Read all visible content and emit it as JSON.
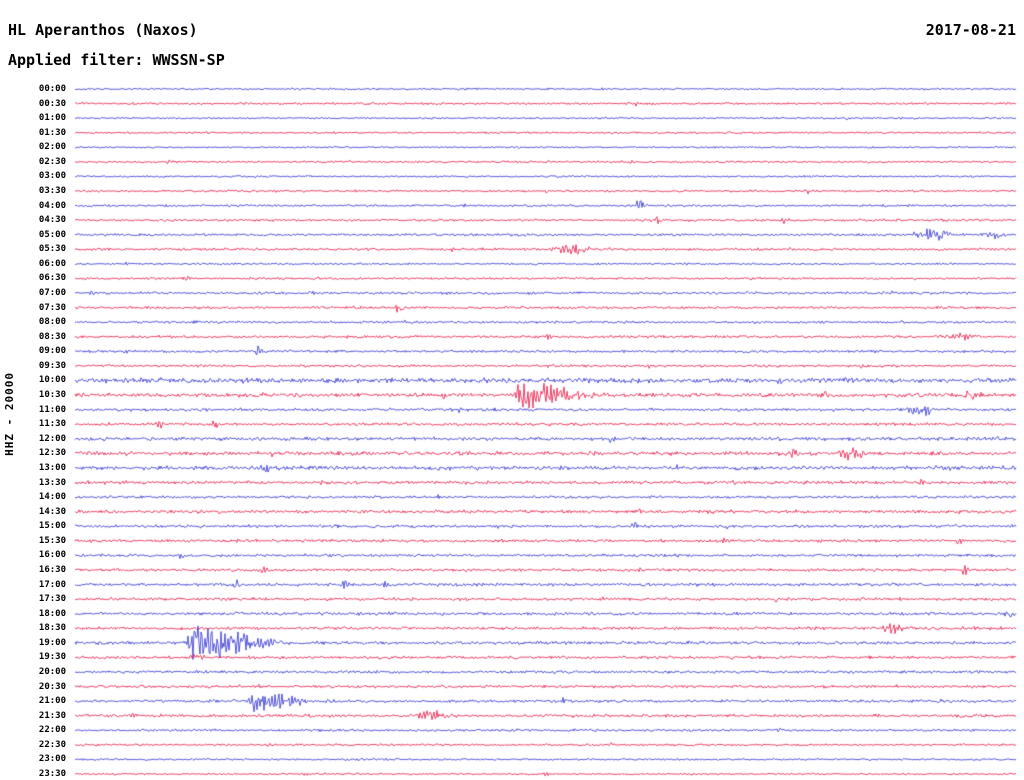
{
  "header": {
    "station_title": "HL Aperanthos (Naxos)",
    "date": "2017-08-21",
    "filter_label": "Applied filter: WWSSN-SP"
  },
  "axis": {
    "left_label": "HHZ - 20000"
  },
  "chart_data": {
    "type": "line",
    "subtype": "helicorder-seismogram",
    "title": "HL Aperanthos (Naxos)",
    "date": "2017-08-21",
    "filter": "WWSSN-SP",
    "channel_scale": "HHZ - 20000",
    "row_duration_minutes": 30,
    "legend_position": "none",
    "grid": false,
    "colors": {
      "blue": "#2424d0",
      "red": "#e60a3c"
    },
    "rows": [
      {
        "label": "00:00",
        "color": "blue",
        "noise": 0.6,
        "events": [
          {
            "p": 0.27,
            "a": 1.5,
            "w": 2
          },
          {
            "p": 0.56,
            "a": 1.2,
            "w": 2
          }
        ]
      },
      {
        "label": "00:30",
        "color": "red",
        "noise": 0.7,
        "events": [
          {
            "p": 0.595,
            "a": 2,
            "w": 2
          },
          {
            "p": 0.3,
            "a": 1.5,
            "w": 2
          }
        ]
      },
      {
        "label": "01:00",
        "color": "blue",
        "noise": 0.55,
        "events": [
          {
            "p": 0.82,
            "a": 1.5,
            "w": 2
          }
        ]
      },
      {
        "label": "01:30",
        "color": "red",
        "noise": 0.6,
        "events": [
          {
            "p": 0.15,
            "a": 1.3,
            "w": 2
          },
          {
            "p": 0.83,
            "a": 1.5,
            "w": 2
          }
        ]
      },
      {
        "label": "02:00",
        "color": "blue",
        "noise": 0.55,
        "events": [
          {
            "p": 0.47,
            "a": 1.5,
            "w": 2
          }
        ]
      },
      {
        "label": "02:30",
        "color": "red",
        "noise": 0.65,
        "events": [
          {
            "p": 0.59,
            "a": 2,
            "w": 2
          },
          {
            "p": 0.1,
            "a": 1.3,
            "w": 2
          },
          {
            "p": 0.33,
            "a": 1.3,
            "w": 2
          }
        ]
      },
      {
        "label": "03:00",
        "color": "blue",
        "noise": 0.6,
        "events": [
          {
            "p": 0.78,
            "a": 2,
            "w": 3
          }
        ]
      },
      {
        "label": "03:30",
        "color": "red",
        "noise": 0.65,
        "events": [
          {
            "p": 0.215,
            "a": 1.8,
            "w": 2
          },
          {
            "p": 0.78,
            "a": 2,
            "w": 2
          },
          {
            "p": 0.5,
            "a": 1.4,
            "w": 2
          }
        ]
      },
      {
        "label": "04:00",
        "color": "blue",
        "noise": 0.7,
        "events": [
          {
            "p": 0.6,
            "a": 6,
            "w": 3
          },
          {
            "p": 0.3,
            "a": 1.6,
            "w": 2
          },
          {
            "p": 0.415,
            "a": 1.6,
            "w": 2
          },
          {
            "p": 0.7,
            "a": 1.5,
            "w": 2
          }
        ]
      },
      {
        "label": "04:30",
        "color": "red",
        "noise": 0.7,
        "events": [
          {
            "p": 0.617,
            "a": 3.5,
            "w": 3
          },
          {
            "p": 0.755,
            "a": 3,
            "w": 3
          },
          {
            "p": 0.3,
            "a": 1.5,
            "w": 2
          }
        ]
      },
      {
        "label": "05:00",
        "color": "blue",
        "noise": 0.75,
        "events": [
          {
            "p": 0.912,
            "a": 5,
            "w": 14
          },
          {
            "p": 0.978,
            "a": 4.5,
            "w": 6
          },
          {
            "p": 0.48,
            "a": 1.6,
            "w": 2
          }
        ]
      },
      {
        "label": "05:30",
        "color": "red",
        "noise": 0.8,
        "events": [
          {
            "p": 0.529,
            "a": 4,
            "w": 12
          },
          {
            "p": 0.4,
            "a": 2,
            "w": 3
          },
          {
            "p": 0.76,
            "a": 1.6,
            "w": 2
          }
        ]
      },
      {
        "label": "06:00",
        "color": "blue",
        "noise": 0.6,
        "events": [
          {
            "p": 0.055,
            "a": 1.6,
            "w": 2
          },
          {
            "p": 0.65,
            "a": 1.4,
            "w": 2
          }
        ]
      },
      {
        "label": "06:30",
        "color": "red",
        "noise": 0.7,
        "events": [
          {
            "p": 0.12,
            "a": 2.5,
            "w": 3
          },
          {
            "p": 0.52,
            "a": 1.5,
            "w": 2
          }
        ]
      },
      {
        "label": "07:00",
        "color": "blue",
        "noise": 0.8,
        "events": [
          {
            "p": 0.016,
            "a": 2,
            "w": 2
          },
          {
            "p": 0.25,
            "a": 2.2,
            "w": 3
          },
          {
            "p": 0.87,
            "a": 1.6,
            "w": 2
          }
        ]
      },
      {
        "label": "07:30",
        "color": "red",
        "noise": 0.8,
        "events": [
          {
            "p": 0.345,
            "a": 7,
            "w": 3
          },
          {
            "p": 0.235,
            "a": 2,
            "w": 2
          },
          {
            "p": 0.58,
            "a": 1.6,
            "w": 2
          }
        ]
      },
      {
        "label": "08:00",
        "color": "blue",
        "noise": 0.75,
        "events": [
          {
            "p": 0.35,
            "a": 2,
            "w": 2
          },
          {
            "p": 0.6,
            "a": 1.5,
            "w": 2
          },
          {
            "p": 0.07,
            "a": 1.5,
            "w": 2
          }
        ]
      },
      {
        "label": "08:30",
        "color": "red",
        "noise": 0.85,
        "events": [
          {
            "p": 0.5,
            "a": 2.5,
            "w": 6
          },
          {
            "p": 0.94,
            "a": 3.5,
            "w": 10
          },
          {
            "p": 0.2,
            "a": 1.8,
            "w": 2
          },
          {
            "p": 0.64,
            "a": 1.8,
            "w": 2
          }
        ]
      },
      {
        "label": "09:00",
        "color": "blue",
        "noise": 0.8,
        "events": [
          {
            "p": 0.197,
            "a": 6.5,
            "w": 3
          },
          {
            "p": 0.056,
            "a": 2.2,
            "w": 2
          },
          {
            "p": 0.85,
            "a": 2.2,
            "w": 3
          }
        ]
      },
      {
        "label": "09:30",
        "color": "red",
        "noise": 0.8,
        "events": [
          {
            "p": 0.24,
            "a": 2,
            "w": 2
          },
          {
            "p": 0.61,
            "a": 1.6,
            "w": 2
          },
          {
            "p": 0.835,
            "a": 1.8,
            "w": 2
          }
        ]
      },
      {
        "label": "10:00",
        "color": "blue",
        "noise": 1.5,
        "events": [
          {
            "p": 0.09,
            "a": 2.5,
            "w": 3
          },
          {
            "p": 0.4,
            "a": 2.5,
            "w": 3
          },
          {
            "p": 0.75,
            "a": 2,
            "w": 2
          }
        ]
      },
      {
        "label": "10:30",
        "color": "red",
        "noise": 1.2,
        "events": [
          {
            "p": 0.475,
            "a": 13,
            "w": 10,
            "t": "quake"
          },
          {
            "p": 0.393,
            "a": 5,
            "w": 4
          },
          {
            "p": 0.197,
            "a": 3,
            "w": 3
          },
          {
            "p": 0.797,
            "a": 3,
            "w": 4
          },
          {
            "p": 0.955,
            "a": 4,
            "w": 8
          },
          {
            "p": 0.6,
            "a": 2.5,
            "w": 3
          }
        ]
      },
      {
        "label": "11:00",
        "color": "blue",
        "noise": 0.9,
        "events": [
          {
            "p": 0.9,
            "a": 5,
            "w": 10
          },
          {
            "p": 0.41,
            "a": 2.2,
            "w": 3
          },
          {
            "p": 0.25,
            "a": 1.8,
            "w": 2
          }
        ]
      },
      {
        "label": "11:30",
        "color": "red",
        "noise": 0.9,
        "events": [
          {
            "p": 0.09,
            "a": 4,
            "w": 3
          },
          {
            "p": 0.149,
            "a": 4,
            "w": 3
          },
          {
            "p": 0.47,
            "a": 1.8,
            "w": 2
          }
        ]
      },
      {
        "label": "12:00",
        "color": "blue",
        "noise": 1.1,
        "events": [
          {
            "p": 0.57,
            "a": 2,
            "w": 3
          },
          {
            "p": 0.3,
            "a": 1.8,
            "w": 2
          }
        ]
      },
      {
        "label": "12:30",
        "color": "red",
        "noise": 1.2,
        "events": [
          {
            "p": 0.765,
            "a": 5,
            "w": 5
          },
          {
            "p": 0.824,
            "a": 5.5,
            "w": 9
          },
          {
            "p": 0.21,
            "a": 2,
            "w": 2
          }
        ]
      },
      {
        "label": "13:00",
        "color": "blue",
        "noise": 1.2,
        "events": [
          {
            "p": 0.202,
            "a": 4.5,
            "w": 3
          },
          {
            "p": 0.64,
            "a": 2,
            "w": 2
          },
          {
            "p": 0.93,
            "a": 2,
            "w": 2
          }
        ]
      },
      {
        "label": "13:30",
        "color": "red",
        "noise": 1.0,
        "events": [
          {
            "p": 0.26,
            "a": 2,
            "w": 2
          },
          {
            "p": 0.7,
            "a": 1.8,
            "w": 2
          },
          {
            "p": 0.9,
            "a": 2,
            "w": 3
          }
        ]
      },
      {
        "label": "14:00",
        "color": "blue",
        "noise": 0.8,
        "events": [
          {
            "p": 0.385,
            "a": 2,
            "w": 2
          },
          {
            "p": 0.76,
            "a": 1.6,
            "w": 2
          }
        ]
      },
      {
        "label": "14:30",
        "color": "red",
        "noise": 1.0,
        "events": [
          {
            "p": 0.6,
            "a": 2.2,
            "w": 2
          },
          {
            "p": 0.775,
            "a": 2.2,
            "w": 2
          },
          {
            "p": 0.94,
            "a": 2,
            "w": 2
          },
          {
            "p": 0.33,
            "a": 1.8,
            "w": 2
          }
        ]
      },
      {
        "label": "15:00",
        "color": "blue",
        "noise": 0.9,
        "events": [
          {
            "p": 0.595,
            "a": 3.5,
            "w": 3
          },
          {
            "p": 0.69,
            "a": 3.5,
            "w": 3
          },
          {
            "p": 0.45,
            "a": 1.8,
            "w": 2
          }
        ]
      },
      {
        "label": "15:30",
        "color": "red",
        "noise": 0.9,
        "events": [
          {
            "p": 0.69,
            "a": 2.5,
            "w": 3
          },
          {
            "p": 0.94,
            "a": 3,
            "w": 3
          },
          {
            "p": 0.11,
            "a": 1.8,
            "w": 2
          }
        ]
      },
      {
        "label": "16:00",
        "color": "blue",
        "noise": 0.85,
        "events": [
          {
            "p": 0.112,
            "a": 3,
            "w": 3
          },
          {
            "p": 0.175,
            "a": 2.5,
            "w": 3
          },
          {
            "p": 0.87,
            "a": 2,
            "w": 2
          }
        ]
      },
      {
        "label": "16:30",
        "color": "red",
        "noise": 0.9,
        "events": [
          {
            "p": 0.2,
            "a": 2.5,
            "w": 3
          },
          {
            "p": 0.945,
            "a": 3.5,
            "w": 3
          },
          {
            "p": 0.6,
            "a": 1.8,
            "w": 2
          }
        ]
      },
      {
        "label": "17:00",
        "color": "blue",
        "noise": 0.9,
        "events": [
          {
            "p": 0.172,
            "a": 6,
            "w": 3
          },
          {
            "p": 0.287,
            "a": 5,
            "w": 3
          },
          {
            "p": 0.33,
            "a": 3,
            "w": 2
          },
          {
            "p": 0.68,
            "a": 2,
            "w": 2
          }
        ]
      },
      {
        "label": "17:30",
        "color": "red",
        "noise": 0.9,
        "events": [
          {
            "p": 0.27,
            "a": 2.2,
            "w": 2
          },
          {
            "p": 0.56,
            "a": 2,
            "w": 2
          },
          {
            "p": 0.745,
            "a": 2,
            "w": 2
          }
        ]
      },
      {
        "label": "18:00",
        "color": "blue",
        "noise": 0.9,
        "events": [
          {
            "p": 0.992,
            "a": 5,
            "w": 4
          },
          {
            "p": 0.68,
            "a": 2.2,
            "w": 2
          },
          {
            "p": 0.3,
            "a": 1.8,
            "w": 2
          }
        ]
      },
      {
        "label": "18:30",
        "color": "red",
        "noise": 0.95,
        "events": [
          {
            "p": 0.869,
            "a": 5,
            "w": 9
          },
          {
            "p": 0.945,
            "a": 2.5,
            "w": 3
          },
          {
            "p": 0.35,
            "a": 1.8,
            "w": 2
          }
        ]
      },
      {
        "label": "19:00",
        "color": "blue",
        "noise": 0.95,
        "events": [
          {
            "p": 0.129,
            "a": 16,
            "w": 12,
            "t": "quake"
          },
          {
            "p": 0.52,
            "a": 2,
            "w": 2
          },
          {
            "p": 0.8,
            "a": 1.8,
            "w": 2
          }
        ]
      },
      {
        "label": "19:30",
        "color": "red",
        "noise": 0.9,
        "events": [
          {
            "p": 0.129,
            "a": 3,
            "w": 6
          },
          {
            "p": 0.47,
            "a": 1.8,
            "w": 2
          },
          {
            "p": 0.76,
            "a": 2,
            "w": 2
          }
        ]
      },
      {
        "label": "20:00",
        "color": "blue",
        "noise": 0.85,
        "events": [
          {
            "p": 0.129,
            "a": 2.5,
            "w": 4
          },
          {
            "p": 0.55,
            "a": 1.8,
            "w": 2
          }
        ]
      },
      {
        "label": "20:30",
        "color": "red",
        "noise": 0.9,
        "events": [
          {
            "p": 0.195,
            "a": 2,
            "w": 2
          },
          {
            "p": 0.52,
            "a": 1.8,
            "w": 2
          },
          {
            "p": 0.875,
            "a": 2,
            "w": 2
          }
        ]
      },
      {
        "label": "21:00",
        "color": "blue",
        "noise": 0.9,
        "events": [
          {
            "p": 0.192,
            "a": 9,
            "w": 8,
            "t": "quake"
          },
          {
            "p": 0.52,
            "a": 2,
            "w": 2
          },
          {
            "p": 0.92,
            "a": 2,
            "w": 2
          }
        ]
      },
      {
        "label": "21:30",
        "color": "red",
        "noise": 0.95,
        "events": [
          {
            "p": 0.379,
            "a": 5,
            "w": 10
          },
          {
            "p": 0.06,
            "a": 2,
            "w": 2
          },
          {
            "p": 0.7,
            "a": 1.8,
            "w": 2
          }
        ]
      },
      {
        "label": "22:00",
        "color": "blue",
        "noise": 0.75,
        "events": [
          {
            "p": 0.47,
            "a": 2,
            "w": 3
          },
          {
            "p": 0.75,
            "a": 1.8,
            "w": 2
          }
        ]
      },
      {
        "label": "22:30",
        "color": "red",
        "noise": 0.65,
        "events": [
          {
            "p": 0.205,
            "a": 2,
            "w": 2
          },
          {
            "p": 0.57,
            "a": 1.6,
            "w": 2
          },
          {
            "p": 0.9,
            "a": 1.8,
            "w": 2
          }
        ]
      },
      {
        "label": "23:00",
        "color": "blue",
        "noise": 0.6,
        "events": [
          {
            "p": 0.33,
            "a": 1.8,
            "w": 2
          },
          {
            "p": 0.77,
            "a": 1.8,
            "w": 2
          }
        ]
      },
      {
        "label": "23:30",
        "color": "red",
        "noise": 0.55,
        "events": [
          {
            "p": 0.5,
            "a": 1.8,
            "w": 2
          },
          {
            "p": 0.245,
            "a": 1.6,
            "w": 2
          }
        ]
      }
    ]
  }
}
